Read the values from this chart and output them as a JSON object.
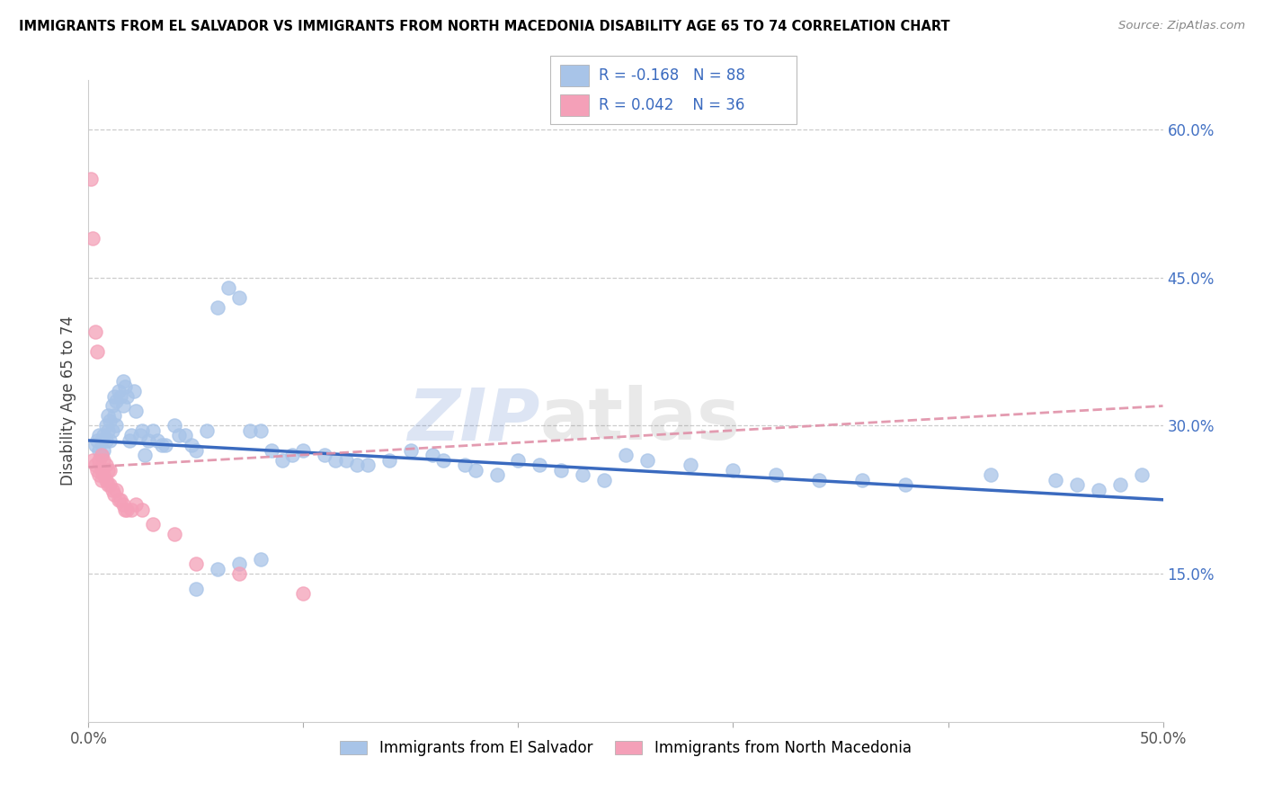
{
  "title": "IMMIGRANTS FROM EL SALVADOR VS IMMIGRANTS FROM NORTH MACEDONIA DISABILITY AGE 65 TO 74 CORRELATION CHART",
  "source": "Source: ZipAtlas.com",
  "ylabel": "Disability Age 65 to 74",
  "xlim": [
    0.0,
    0.5
  ],
  "ylim": [
    0.0,
    0.65
  ],
  "yticks_right": [
    0.15,
    0.3,
    0.45,
    0.6
  ],
  "yticklabels_right": [
    "15.0%",
    "30.0%",
    "45.0%",
    "60.0%"
  ],
  "el_salvador_R": -0.168,
  "el_salvador_N": 88,
  "north_macedonia_R": 0.042,
  "north_macedonia_N": 36,
  "el_salvador_color": "#a8c4e8",
  "north_macedonia_color": "#f4a0b8",
  "el_salvador_line_color": "#3a6abf",
  "north_macedonia_line_color": "#e090a8",
  "legend_label_1": "Immigrants from El Salvador",
  "legend_label_2": "Immigrants from North Macedonia",
  "watermark": "ZIPatlas",
  "el_salvador_x": [
    0.003,
    0.004,
    0.005,
    0.005,
    0.006,
    0.006,
    0.007,
    0.007,
    0.008,
    0.008,
    0.009,
    0.009,
    0.01,
    0.01,
    0.011,
    0.011,
    0.012,
    0.012,
    0.013,
    0.013,
    0.014,
    0.015,
    0.016,
    0.016,
    0.017,
    0.018,
    0.019,
    0.02,
    0.021,
    0.022,
    0.024,
    0.025,
    0.026,
    0.028,
    0.03,
    0.032,
    0.034,
    0.036,
    0.04,
    0.042,
    0.045,
    0.048,
    0.05,
    0.055,
    0.06,
    0.065,
    0.07,
    0.075,
    0.08,
    0.085,
    0.09,
    0.095,
    0.1,
    0.11,
    0.115,
    0.12,
    0.125,
    0.13,
    0.14,
    0.15,
    0.16,
    0.165,
    0.175,
    0.18,
    0.19,
    0.2,
    0.21,
    0.22,
    0.23,
    0.24,
    0.25,
    0.26,
    0.28,
    0.3,
    0.32,
    0.34,
    0.36,
    0.38,
    0.42,
    0.45,
    0.46,
    0.47,
    0.48,
    0.49,
    0.05,
    0.06,
    0.07,
    0.08
  ],
  "el_salvador_y": [
    0.28,
    0.285,
    0.29,
    0.275,
    0.285,
    0.27,
    0.29,
    0.275,
    0.3,
    0.285,
    0.295,
    0.31,
    0.305,
    0.285,
    0.32,
    0.295,
    0.33,
    0.31,
    0.325,
    0.3,
    0.335,
    0.33,
    0.32,
    0.345,
    0.34,
    0.33,
    0.285,
    0.29,
    0.335,
    0.315,
    0.29,
    0.295,
    0.27,
    0.285,
    0.295,
    0.285,
    0.28,
    0.28,
    0.3,
    0.29,
    0.29,
    0.28,
    0.275,
    0.295,
    0.42,
    0.44,
    0.43,
    0.295,
    0.295,
    0.275,
    0.265,
    0.27,
    0.275,
    0.27,
    0.265,
    0.265,
    0.26,
    0.26,
    0.265,
    0.275,
    0.27,
    0.265,
    0.26,
    0.255,
    0.25,
    0.265,
    0.26,
    0.255,
    0.25,
    0.245,
    0.27,
    0.265,
    0.26,
    0.255,
    0.25,
    0.245,
    0.245,
    0.24,
    0.25,
    0.245,
    0.24,
    0.235,
    0.24,
    0.25,
    0.135,
    0.155,
    0.16,
    0.165
  ],
  "north_macedonia_x": [
    0.001,
    0.002,
    0.002,
    0.003,
    0.003,
    0.004,
    0.004,
    0.005,
    0.005,
    0.006,
    0.006,
    0.006,
    0.007,
    0.007,
    0.008,
    0.008,
    0.009,
    0.009,
    0.01,
    0.01,
    0.011,
    0.012,
    0.013,
    0.014,
    0.015,
    0.016,
    0.017,
    0.018,
    0.02,
    0.022,
    0.025,
    0.03,
    0.04,
    0.05,
    0.07,
    0.1
  ],
  "north_macedonia_y": [
    0.55,
    0.49,
    0.265,
    0.395,
    0.26,
    0.375,
    0.255,
    0.265,
    0.25,
    0.27,
    0.255,
    0.245,
    0.265,
    0.25,
    0.26,
    0.245,
    0.255,
    0.24,
    0.255,
    0.24,
    0.235,
    0.23,
    0.235,
    0.225,
    0.225,
    0.22,
    0.215,
    0.215,
    0.215,
    0.22,
    0.215,
    0.2,
    0.19,
    0.16,
    0.15,
    0.13
  ],
  "el_salvador_line_x": [
    0.0,
    0.5
  ],
  "el_salvador_line_y_start": 0.285,
  "el_salvador_line_y_end": 0.225,
  "north_macedonia_line_x": [
    0.0,
    0.5
  ],
  "north_macedonia_line_y_start": 0.258,
  "north_macedonia_line_y_end": 0.32
}
